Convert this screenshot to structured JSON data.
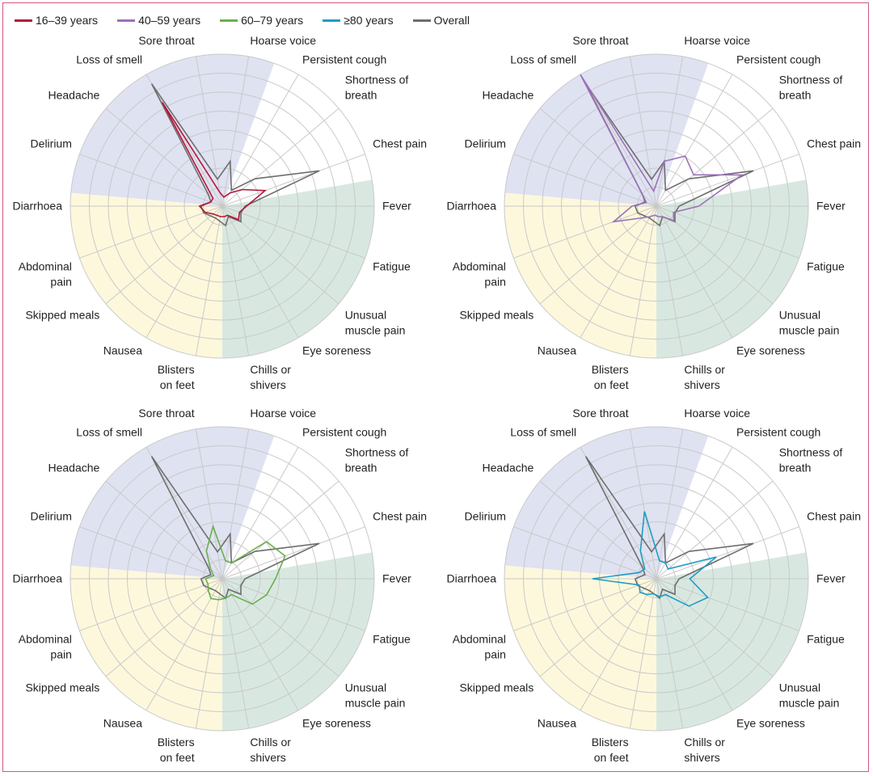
{
  "legend": [
    {
      "label": "16–39 years",
      "color": "#b5163b"
    },
    {
      "label": "40–59 years",
      "color": "#9b72b8"
    },
    {
      "label": "60–79 years",
      "color": "#6ab04c"
    },
    {
      "label": "≥80 years",
      "color": "#1e9cc4"
    },
    {
      "label": "Overall",
      "color": "#6e6e6e"
    }
  ],
  "chart_data": {
    "type": "radar",
    "axes": [
      "Fever",
      "Chest pain",
      "Shortness of breath",
      "Persistent cough",
      "Hoarse voice",
      "Sore throat",
      "Loss of smell",
      "Headache",
      "Delirium",
      "Diarrhoea",
      "Abdominal pain",
      "Skipped meals",
      "Nausea",
      "Blisters on feet",
      "Chills or shivers",
      "Eye soreness",
      "Unusual muscle pain",
      "Fatigue"
    ],
    "axis_labels": [
      [
        "Fever"
      ],
      [
        "Chest pain"
      ],
      [
        "Shortness of",
        "breath"
      ],
      [
        "Persistent cough"
      ],
      [
        "Hoarse voice"
      ],
      [
        "Sore throat"
      ],
      [
        "Loss of smell"
      ],
      [
        "Headache"
      ],
      [
        "Delirium"
      ],
      [
        "Diarrhoea"
      ],
      [
        "Abdominal",
        "pain"
      ],
      [
        "Skipped meals"
      ],
      [
        "Nausea"
      ],
      [
        "Blisters",
        "on feet"
      ],
      [
        "Chills or",
        "shivers"
      ],
      [
        "Eye soreness"
      ],
      [
        "Unusual",
        "muscle pain"
      ],
      [
        "Fatigue"
      ]
    ],
    "rlim": [
      0,
      1
    ],
    "rings": 8,
    "sector_colors": {
      "respiratory": "#ffffff",
      "neuro": "#dfe2f1",
      "gastro": "#fdf8dc",
      "systemic": "#d8e8e1"
    },
    "overall": [
      0.15,
      0.68,
      0.28,
      0.12,
      0.3,
      0.18,
      0.93,
      0.12,
      0.08,
      0.14,
      0.13,
      0.1,
      0.09,
      0.1,
      0.13,
      0.08,
      0.16,
      0.13
    ],
    "panels": [
      {
        "group": "16–39 years",
        "color": "#b5163b",
        "values": [
          0.16,
          0.3,
          0.17,
          0.1,
          0.06,
          0.09,
          0.79,
          0.08,
          0.08,
          0.15,
          0.12,
          0.08,
          0.07,
          0.07,
          0.07,
          0.07,
          0.14,
          0.12
        ]
      },
      {
        "group": "40–59 years",
        "color": "#9b72b8",
        "values": [
          0.28,
          0.6,
          0.32,
          0.38,
          0.3,
          0.1,
          1.0,
          0.12,
          0.07,
          0.16,
          0.3,
          0.12,
          0.08,
          0.06,
          0.07,
          0.08,
          0.15,
          0.12
        ]
      },
      {
        "group": "60–79 years",
        "color": "#6ab04c",
        "values": [
          0.35,
          0.44,
          0.38,
          0.12,
          0.12,
          0.35,
          0.21,
          0.1,
          0.06,
          0.11,
          0.1,
          0.12,
          0.15,
          0.14,
          0.13,
          0.12,
          0.26,
          0.31
        ]
      },
      {
        "group": "≥80 years",
        "color": "#1e9cc4",
        "values": [
          0.22,
          0.42,
          0.1,
          0.12,
          0.12,
          0.45,
          0.21,
          0.1,
          0.12,
          0.42,
          0.12,
          0.14,
          0.12,
          0.1,
          0.12,
          0.12,
          0.28,
          0.36
        ]
      }
    ]
  }
}
